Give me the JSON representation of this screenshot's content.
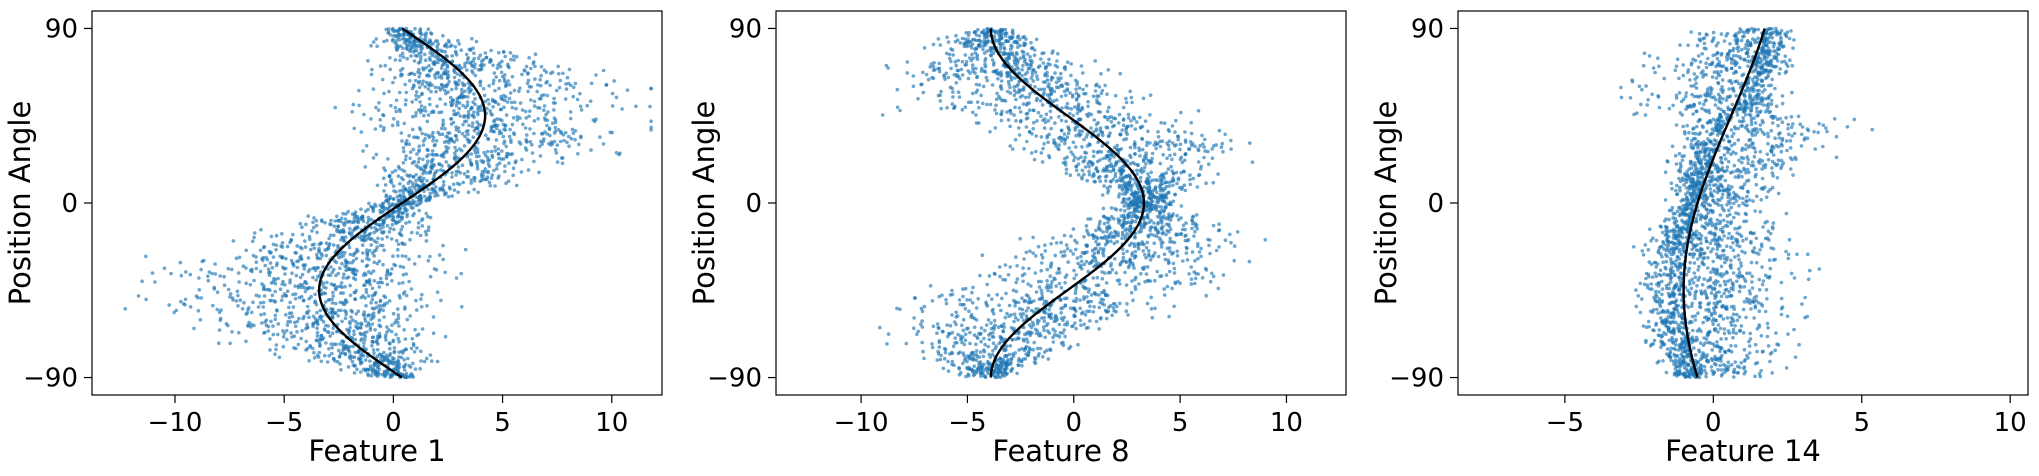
{
  "chart_data": [
    {
      "type": "scatter",
      "xlabel": "Feature 1",
      "ylabel": "Position Angle",
      "xlim": [
        -13.8,
        12.3
      ],
      "ylim": [
        -99,
        99
      ],
      "xticks": [
        -10,
        -5,
        0,
        5,
        10
      ],
      "xtick_labels": [
        "−10",
        "−5",
        "0",
        "5",
        "10"
      ],
      "yticks": [
        -90,
        0,
        90
      ],
      "ytick_labels": [
        "−90",
        "0",
        "90"
      ],
      "grid": false,
      "point_color": "#1f77b4",
      "curve_color": "#000000",
      "scatter_model": {
        "n_points": 2600,
        "center_fn": "offset + amp*sin(2*angle)",
        "offset": 0.4,
        "amp": 3.8,
        "spread_min": 0.8,
        "spread_max": 4.5,
        "skew": 1.4
      },
      "fit_curve": {
        "offset": 0.4,
        "amp": 3.8,
        "phase_deg": 0,
        "angle_range": [
          -90,
          90
        ]
      }
    },
    {
      "type": "scatter",
      "xlabel": "Feature 8",
      "ylabel": "Position Angle",
      "xlim": [
        -14,
        12.8
      ],
      "ylim": [
        -99,
        99
      ],
      "xticks": [
        -10,
        -5,
        0,
        5,
        10
      ],
      "xtick_labels": [
        "−10",
        "−5",
        "0",
        "5",
        "10"
      ],
      "yticks": [
        -90,
        0,
        90
      ],
      "ytick_labels": [
        "−90",
        "0",
        "90"
      ],
      "grid": false,
      "point_color": "#1f77b4",
      "curve_color": "#000000",
      "scatter_model": {
        "n_points": 2600,
        "center_fn": "offset + amp*cos(2*angle)",
        "offset": -0.3,
        "amp": 3.6,
        "spread_min": 0.8,
        "spread_max": 4.5,
        "skew": 1.3
      },
      "fit_curve": {
        "offset": -0.3,
        "amp": 3.6,
        "phase_deg": 45,
        "angle_range": [
          -90,
          90
        ]
      }
    },
    {
      "type": "scatter",
      "xlabel": "Feature 14",
      "ylabel": "Position Angle",
      "xlim": [
        -8.6,
        10.6
      ],
      "ylim": [
        -99,
        99
      ],
      "xticks": [
        -5,
        0,
        5,
        10
      ],
      "xtick_labels": [
        "−5",
        "0",
        "5",
        "10"
      ],
      "yticks": [
        -90,
        0,
        90
      ],
      "ytick_labels": [
        "−90",
        "0",
        "90"
      ],
      "grid": false,
      "point_color": "#1f77b4",
      "curve_color": "#000000",
      "scatter_model": {
        "n_points": 2600,
        "center_fn": "offset + amp*sin(angle - 45)",
        "offset": 0.6,
        "amp": 1.6,
        "spread_min": 1.8,
        "spread_max": 3.2,
        "skew": 0.4
      },
      "fit_curve": {
        "offset": 0.6,
        "amp": 1.6,
        "phase_deg": -45,
        "angle_range": [
          -90,
          90
        ]
      }
    }
  ]
}
